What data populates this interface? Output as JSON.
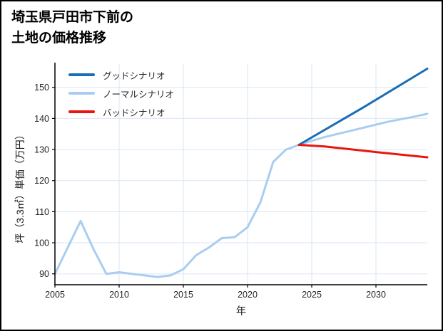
{
  "title": {
    "line1": "埼玉県戸田市下前の",
    "line2": "土地の価格推移"
  },
  "chart_data": {
    "type": "line",
    "title": "埼玉県戸田市下前の土地の価格推移",
    "xlabel": "年",
    "ylabel": "坪（3.3㎡）単価（万円）",
    "x_range": [
      2005,
      2034
    ],
    "y_range": [
      86.5,
      157.5
    ],
    "x_ticks": [
      2005,
      2010,
      2015,
      2020,
      2025,
      2030
    ],
    "y_ticks": [
      90,
      100,
      110,
      120,
      130,
      140,
      150
    ],
    "grid": true,
    "legend_position": "upper-left",
    "colors": {
      "grid": "#dbe5f5",
      "axis": "#000000",
      "good": "#1b6db6",
      "normal": "#a9cdf0",
      "bad": "#e8170e"
    },
    "legend": [
      {
        "label": "グッドシナリオ",
        "color": "#1b6db6"
      },
      {
        "label": "ノーマルシナリオ",
        "color": "#a9cdf0"
      },
      {
        "label": "バッドシナリオ",
        "color": "#e8170e"
      }
    ],
    "series": [
      {
        "name": "ノーマルシナリオ",
        "color": "#a9cdf0",
        "width": 3,
        "points": [
          [
            2005,
            90
          ],
          [
            2006,
            98.5
          ],
          [
            2007,
            107
          ],
          [
            2008,
            98
          ],
          [
            2009,
            90
          ],
          [
            2010,
            90.5
          ],
          [
            2011,
            90
          ],
          [
            2012,
            89.5
          ],
          [
            2013,
            89
          ],
          [
            2014,
            89.5
          ],
          [
            2015,
            91.5
          ],
          [
            2016,
            96
          ],
          [
            2017,
            98.5
          ],
          [
            2018,
            101.5
          ],
          [
            2019,
            101.8
          ],
          [
            2020,
            105
          ],
          [
            2021,
            113
          ],
          [
            2022,
            126
          ],
          [
            2023,
            130
          ],
          [
            2024,
            131.5
          ],
          [
            2025,
            132.8
          ],
          [
            2026,
            134
          ],
          [
            2027,
            135
          ],
          [
            2028,
            136
          ],
          [
            2029,
            137
          ],
          [
            2030,
            138
          ],
          [
            2031,
            139
          ],
          [
            2032,
            139.8
          ],
          [
            2033,
            140.6
          ],
          [
            2034,
            141.5
          ]
        ]
      },
      {
        "name": "グッドシナリオ",
        "color": "#1b6db6",
        "width": 3,
        "points": [
          [
            2024,
            131.5
          ],
          [
            2029,
            143.5
          ],
          [
            2034,
            156
          ]
        ]
      },
      {
        "name": "バッドシナリオ",
        "color": "#e8170e",
        "width": 3,
        "points": [
          [
            2024,
            131.5
          ],
          [
            2026,
            131
          ],
          [
            2030,
            129.2
          ],
          [
            2034,
            127.5
          ]
        ]
      }
    ]
  }
}
